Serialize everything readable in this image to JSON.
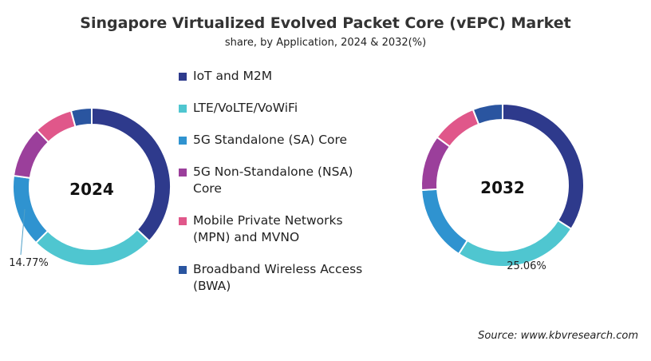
{
  "title": "Singapore Virtualized Evolved Packet Core (vEPC) Market",
  "subtitle": "share, by Application, 2024 & 2032(%)",
  "source": "Source: www.kbvresearch.com",
  "chart_data": [
    {
      "type": "donut",
      "title": "2024",
      "categories": [
        "IoT and M2M",
        "LTE/VoLTE/VoWiFi",
        "5G Standalone (SA) Core",
        "5G Non-Standalone (NSA) Core",
        "Mobile Private Networks (MPN) and MVNO",
        "Broadband Wireless Access (BWA)"
      ],
      "values": [
        37,
        25.5,
        14.77,
        10.5,
        8,
        4.23
      ],
      "value_labels": [
        null,
        null,
        "14.77%",
        null,
        null,
        null
      ],
      "colors": [
        "#2e3a8c",
        "#4fc6d0",
        "#2f93d0",
        "#9b3f9b",
        "#e0578a",
        "#2a55a0"
      ]
    },
    {
      "type": "donut",
      "title": "2032",
      "categories": [
        "IoT and M2M",
        "LTE/VoLTE/VoWiFi",
        "5G Standalone (SA) Core",
        "5G Non-Standalone (NSA) Core",
        "Mobile Private Networks (MPN) and MVNO",
        "Broadband Wireless Access (BWA)"
      ],
      "values": [
        34,
        25.06,
        15,
        11,
        9,
        5.94
      ],
      "value_labels": [
        null,
        "25.06%",
        null,
        null,
        null,
        null
      ],
      "colors": [
        "#2e3a8c",
        "#4fc6d0",
        "#2f93d0",
        "#9b3f9b",
        "#e0578a",
        "#2a55a0"
      ]
    }
  ]
}
